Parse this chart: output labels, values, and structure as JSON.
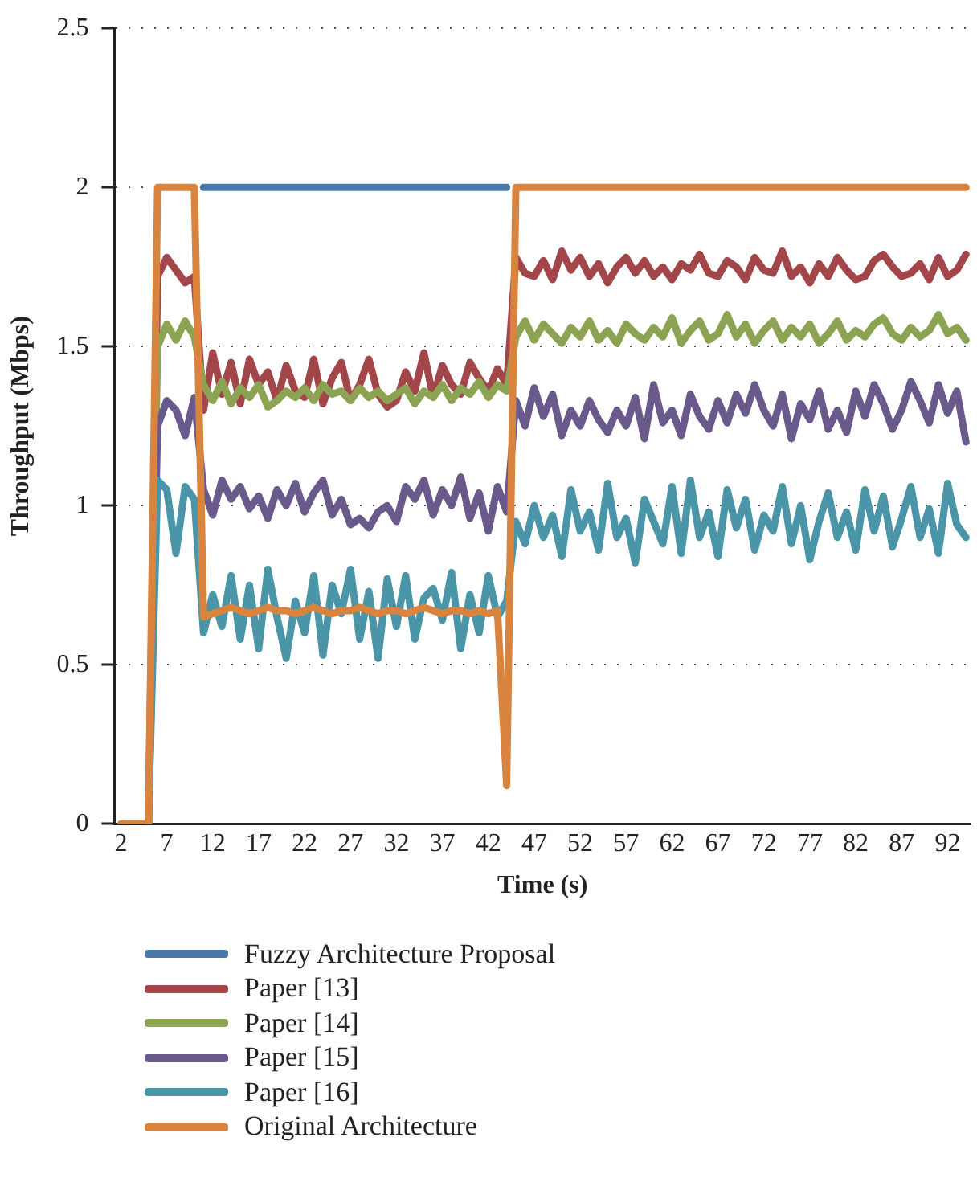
{
  "chart_data": {
    "type": "line",
    "xlabel": "Time (s)",
    "ylabel": "Throughput (Mbps)",
    "x": [
      2,
      3,
      4,
      5,
      6,
      7,
      8,
      9,
      10,
      11,
      12,
      13,
      14,
      15,
      16,
      17,
      18,
      19,
      20,
      21,
      22,
      23,
      24,
      25,
      26,
      27,
      28,
      29,
      30,
      31,
      32,
      33,
      34,
      35,
      36,
      37,
      38,
      39,
      40,
      41,
      42,
      43,
      44,
      45,
      46,
      47,
      48,
      49,
      50,
      51,
      52,
      53,
      54,
      55,
      56,
      57,
      58,
      59,
      60,
      61,
      62,
      63,
      64,
      65,
      66,
      67,
      68,
      69,
      70,
      71,
      72,
      73,
      74,
      75,
      76,
      77,
      78,
      79,
      80,
      81,
      82,
      83,
      84,
      85,
      86,
      87,
      88,
      89,
      90,
      91,
      92,
      93,
      94
    ],
    "xlim": [
      1.3,
      94.5
    ],
    "xticks": [
      2,
      7,
      12,
      17,
      22,
      27,
      32,
      37,
      42,
      47,
      52,
      57,
      62,
      67,
      72,
      77,
      82,
      87,
      92
    ],
    "ylim": [
      0,
      2.5
    ],
    "yticks": [
      0,
      0.5,
      1,
      1.5,
      2,
      2.5
    ],
    "grid": "y",
    "legend": "bottom",
    "marker": "none",
    "line_style": "solid",
    "series": [
      {
        "name": "Fuzzy Architecture Proposal",
        "color": "#4a78a8",
        "values": [
          null,
          null,
          null,
          null,
          null,
          null,
          null,
          null,
          null,
          2,
          2,
          2,
          2,
          2,
          2,
          2,
          2,
          2,
          2,
          2,
          2,
          2,
          2,
          2,
          2,
          2,
          2,
          2,
          2,
          2,
          2,
          2,
          2,
          2,
          2,
          2,
          2,
          2,
          2,
          2,
          2,
          2,
          2,
          null,
          null,
          null,
          null,
          null,
          null,
          null,
          null,
          null,
          null,
          null,
          null,
          null,
          null,
          null,
          null,
          null,
          null,
          null,
          null,
          null,
          null,
          null,
          null,
          null,
          null,
          null,
          null,
          null,
          null,
          null,
          null,
          null,
          null,
          null,
          null,
          null,
          null,
          null,
          null,
          null,
          null,
          null,
          null,
          null,
          null,
          null,
          null,
          null,
          null
        ]
      },
      {
        "name": "Paper [13]",
        "color": "#a2464a",
        "values": [
          null,
          null,
          null,
          0,
          1.72,
          1.78,
          1.74,
          1.7,
          1.72,
          1.3,
          1.48,
          1.35,
          1.45,
          1.32,
          1.46,
          1.38,
          1.42,
          1.33,
          1.44,
          1.36,
          1.34,
          1.46,
          1.32,
          1.4,
          1.45,
          1.33,
          1.38,
          1.46,
          1.35,
          1.31,
          1.33,
          1.42,
          1.36,
          1.48,
          1.34,
          1.44,
          1.38,
          1.35,
          1.45,
          1.4,
          1.36,
          1.43,
          1.38,
          1.78,
          1.73,
          1.72,
          1.77,
          1.71,
          1.8,
          1.74,
          1.78,
          1.72,
          1.76,
          1.7,
          1.75,
          1.78,
          1.73,
          1.77,
          1.72,
          1.75,
          1.71,
          1.76,
          1.74,
          1.79,
          1.73,
          1.72,
          1.77,
          1.75,
          1.71,
          1.78,
          1.74,
          1.73,
          1.8,
          1.72,
          1.75,
          1.7,
          1.76,
          1.72,
          1.78,
          1.74,
          1.71,
          1.72,
          1.77,
          1.79,
          1.75,
          1.72,
          1.73,
          1.76,
          1.71,
          1.78,
          1.72,
          1.74,
          1.79
        ]
      },
      {
        "name": "Paper [14]",
        "color": "#8ba352",
        "values": [
          null,
          null,
          null,
          0,
          1.5,
          1.57,
          1.52,
          1.58,
          1.53,
          1.38,
          1.33,
          1.39,
          1.32,
          1.37,
          1.34,
          1.38,
          1.31,
          1.33,
          1.36,
          1.34,
          1.37,
          1.33,
          1.38,
          1.35,
          1.36,
          1.33,
          1.37,
          1.34,
          1.36,
          1.33,
          1.35,
          1.37,
          1.32,
          1.36,
          1.34,
          1.38,
          1.33,
          1.37,
          1.35,
          1.39,
          1.34,
          1.38,
          1.36,
          1.53,
          1.58,
          1.52,
          1.57,
          1.54,
          1.51,
          1.56,
          1.53,
          1.58,
          1.52,
          1.55,
          1.51,
          1.57,
          1.54,
          1.52,
          1.56,
          1.53,
          1.59,
          1.51,
          1.55,
          1.58,
          1.52,
          1.54,
          1.6,
          1.53,
          1.57,
          1.51,
          1.55,
          1.58,
          1.52,
          1.56,
          1.53,
          1.57,
          1.51,
          1.54,
          1.58,
          1.52,
          1.55,
          1.53,
          1.57,
          1.59,
          1.54,
          1.52,
          1.56,
          1.53,
          1.55,
          1.6,
          1.54,
          1.56,
          1.52
        ]
      },
      {
        "name": "Paper [15]",
        "color": "#6a5a8c",
        "values": [
          null,
          null,
          null,
          0,
          1.25,
          1.33,
          1.3,
          1.22,
          1.34,
          1.05,
          0.97,
          1.08,
          1.02,
          1.06,
          0.99,
          1.03,
          0.96,
          1.05,
          1.0,
          1.07,
          0.98,
          1.04,
          1.08,
          0.97,
          1.02,
          0.94,
          0.96,
          0.93,
          0.98,
          1.0,
          0.95,
          1.06,
          1.02,
          1.08,
          0.97,
          1.05,
          1.0,
          1.09,
          0.96,
          1.04,
          0.92,
          1.06,
          0.98,
          1.33,
          1.25,
          1.37,
          1.28,
          1.35,
          1.22,
          1.3,
          1.25,
          1.33,
          1.27,
          1.23,
          1.3,
          1.25,
          1.34,
          1.21,
          1.38,
          1.26,
          1.3,
          1.22,
          1.35,
          1.28,
          1.24,
          1.33,
          1.26,
          1.35,
          1.29,
          1.38,
          1.3,
          1.25,
          1.35,
          1.21,
          1.32,
          1.27,
          1.36,
          1.24,
          1.3,
          1.23,
          1.36,
          1.28,
          1.38,
          1.32,
          1.24,
          1.3,
          1.39,
          1.33,
          1.26,
          1.38,
          1.29,
          1.36,
          1.2
        ]
      },
      {
        "name": "Paper [16]",
        "color": "#4a96a8",
        "values": [
          null,
          null,
          null,
          0,
          1.08,
          1.05,
          0.85,
          1.06,
          1.02,
          0.6,
          0.72,
          0.62,
          0.78,
          0.58,
          0.75,
          0.55,
          0.8,
          0.65,
          0.52,
          0.7,
          0.6,
          0.78,
          0.53,
          0.75,
          0.66,
          0.8,
          0.58,
          0.73,
          0.52,
          0.77,
          0.62,
          0.78,
          0.58,
          0.71,
          0.74,
          0.64,
          0.79,
          0.55,
          0.72,
          0.6,
          0.78,
          0.65,
          0.7,
          0.95,
          0.88,
          1.0,
          0.9,
          0.97,
          0.84,
          1.05,
          0.92,
          0.98,
          0.86,
          1.07,
          0.9,
          0.96,
          0.82,
          1.02,
          0.95,
          0.88,
          1.06,
          0.85,
          1.08,
          0.9,
          0.98,
          0.84,
          1.05,
          0.93,
          1.02,
          0.86,
          0.97,
          0.92,
          1.06,
          0.88,
          1.0,
          0.83,
          0.95,
          1.04,
          0.9,
          0.98,
          0.86,
          1.05,
          0.92,
          1.03,
          0.87,
          0.96,
          1.06,
          0.9,
          0.99,
          0.85,
          1.07,
          0.94,
          0.9
        ]
      },
      {
        "name": "Original Architecture",
        "color": "#d9843e",
        "values": [
          0,
          0,
          0,
          0,
          2,
          2,
          2,
          2,
          2,
          0.65,
          0.66,
          0.67,
          0.68,
          0.67,
          0.66,
          0.67,
          0.68,
          0.67,
          0.67,
          0.66,
          0.67,
          0.68,
          0.67,
          0.66,
          0.67,
          0.67,
          0.68,
          0.67,
          0.66,
          0.67,
          0.67,
          0.66,
          0.67,
          0.68,
          0.67,
          0.66,
          0.67,
          0.67,
          0.66,
          0.67,
          0.66,
          0.67,
          0.12,
          2,
          2,
          2,
          2,
          2,
          2,
          2,
          2,
          2,
          2,
          2,
          2,
          2,
          2,
          2,
          2,
          2,
          2,
          2,
          2,
          2,
          2,
          2,
          2,
          2,
          2,
          2,
          2,
          2,
          2,
          2,
          2,
          2,
          2,
          2,
          2,
          2,
          2,
          2,
          2,
          2,
          2,
          2,
          2,
          2,
          2,
          2,
          2,
          2,
          2
        ]
      }
    ]
  }
}
